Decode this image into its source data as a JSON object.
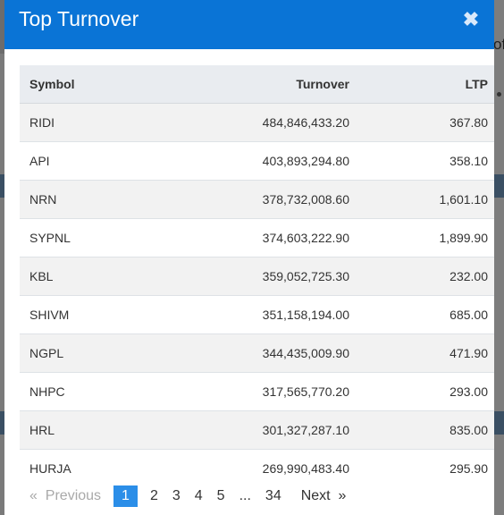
{
  "modal": {
    "title": "Top Turnover",
    "close_symbol": "✖"
  },
  "background": {
    "right_text": "of"
  },
  "table": {
    "headers": {
      "symbol": "Symbol",
      "turnover": "Turnover",
      "ltp": "LTP"
    },
    "rows": [
      {
        "symbol": "RIDI",
        "turnover": "484,846,433.20",
        "ltp": "367.80"
      },
      {
        "symbol": "API",
        "turnover": "403,893,294.80",
        "ltp": "358.10"
      },
      {
        "symbol": "NRN",
        "turnover": "378,732,008.60",
        "ltp": "1,601.10"
      },
      {
        "symbol": "SYPNL",
        "turnover": "374,603,222.90",
        "ltp": "1,899.90"
      },
      {
        "symbol": "KBL",
        "turnover": "359,052,725.30",
        "ltp": "232.00"
      },
      {
        "symbol": "SHIVM",
        "turnover": "351,158,194.00",
        "ltp": "685.00"
      },
      {
        "symbol": "NGPL",
        "turnover": "344,435,009.90",
        "ltp": "471.90"
      },
      {
        "symbol": "NHPC",
        "turnover": "317,565,770.20",
        "ltp": "293.00"
      },
      {
        "symbol": "HRL",
        "turnover": "301,327,287.10",
        "ltp": "835.00"
      },
      {
        "symbol": "HURJA",
        "turnover": "269,990,483.40",
        "ltp": "295.90"
      }
    ]
  },
  "pagination": {
    "previous": "«  Previous",
    "pages": [
      "1",
      "2",
      "3",
      "4",
      "5"
    ],
    "ellipsis": "...",
    "last": "34",
    "next": "Next  »",
    "active_page": "1"
  },
  "colors": {
    "header_bg": "#0a74d6",
    "active_page_bg": "#2b8ee8"
  }
}
